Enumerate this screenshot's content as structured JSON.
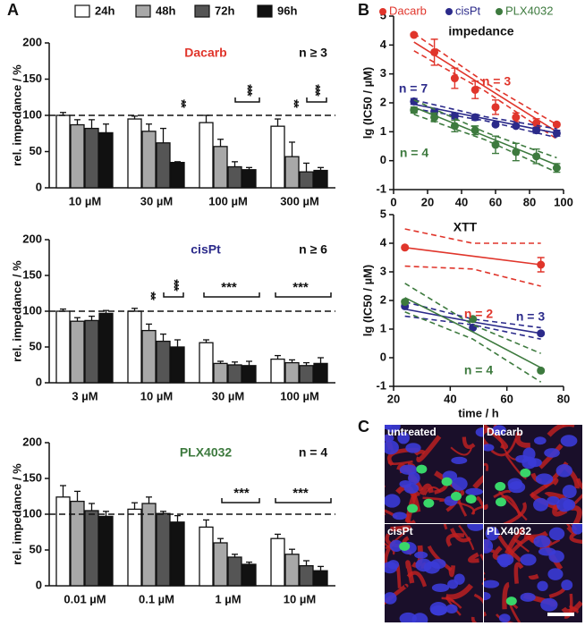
{
  "panels": {
    "labels": [
      "A",
      "B",
      "C"
    ]
  },
  "images": {
    "labels": [
      "untreated",
      "Dacarb",
      "cisPt",
      "PLX4032"
    ]
  },
  "chart_data": [
    {
      "type": "bar",
      "title": "Dacarb",
      "subtitle": "n ≥ 3",
      "title_color": "#e0352b",
      "ylabel": "rel. impedance / %",
      "categories": [
        "10 µM",
        "30 µM",
        "100 µM",
        "300 µM"
      ],
      "ylim": [
        0,
        200
      ],
      "yticks": [
        0,
        50,
        100,
        150,
        200
      ],
      "hline": 100,
      "series": [
        {
          "name": "24h",
          "color": "#ffffff",
          "values": [
            100,
            95,
            90,
            85
          ],
          "errors": [
            4,
            4,
            10,
            10
          ]
        },
        {
          "name": "48h",
          "color": "#a8a8a8",
          "values": [
            87,
            78,
            57,
            43
          ],
          "errors": [
            7,
            10,
            10,
            20
          ]
        },
        {
          "name": "72h",
          "color": "#555555",
          "values": [
            82,
            62,
            29,
            22
          ],
          "errors": [
            12,
            20,
            7,
            12
          ]
        },
        {
          "name": "96h",
          "color": "#111111",
          "values": [
            76,
            35,
            25,
            24
          ],
          "errors": [
            12,
            1,
            3,
            4
          ]
        }
      ],
      "annotations": [
        "**",
        "***",
        "**",
        "***"
      ]
    },
    {
      "type": "bar",
      "title": "cisPt",
      "subtitle": "n ≥ 6",
      "title_color": "#2b2a8a",
      "ylabel": "rel. impedance / %",
      "categories": [
        "3 µM",
        "10 µM",
        "30 µM",
        "100 µM"
      ],
      "ylim": [
        0,
        200
      ],
      "yticks": [
        0,
        50,
        100,
        150,
        200
      ],
      "hline": 100,
      "series": [
        {
          "color": "#ffffff",
          "values": [
            100,
            100,
            56,
            33
          ],
          "errors": [
            3,
            4,
            4,
            5
          ]
        },
        {
          "color": "#a8a8a8",
          "values": [
            86,
            73,
            27,
            28
          ],
          "errors": [
            5,
            9,
            3,
            4
          ]
        },
        {
          "color": "#555555",
          "values": [
            87,
            58,
            25,
            24
          ],
          "errors": [
            6,
            10,
            4,
            4
          ]
        },
        {
          "color": "#111111",
          "values": [
            97,
            50,
            24,
            27
          ],
          "errors": [
            4,
            10,
            6,
            8
          ]
        }
      ],
      "annotations": [
        "**",
        "***",
        "***",
        "***"
      ]
    },
    {
      "type": "bar",
      "title": "PLX4032",
      "subtitle": "n = 4",
      "title_color": "#3d7a3e",
      "ylabel": "rel. impedance / %",
      "categories": [
        "0.01 µM",
        "0.1 µM",
        "1 µM",
        "10 µM"
      ],
      "ylim": [
        0,
        200
      ],
      "yticks": [
        0,
        50,
        100,
        150,
        200
      ],
      "hline": 100,
      "series": [
        {
          "color": "#ffffff",
          "values": [
            124,
            107,
            82,
            66
          ],
          "errors": [
            16,
            9,
            10,
            6
          ]
        },
        {
          "color": "#a8a8a8",
          "values": [
            118,
            115,
            60,
            44
          ],
          "errors": [
            14,
            9,
            6,
            7
          ]
        },
        {
          "color": "#555555",
          "values": [
            105,
            101,
            40,
            28
          ],
          "errors": [
            10,
            3,
            4,
            7
          ]
        },
        {
          "color": "#111111",
          "values": [
            97,
            89,
            30,
            21
          ],
          "errors": [
            7,
            9,
            3,
            6
          ]
        }
      ],
      "annotations": [
        "***",
        "***"
      ]
    },
    {
      "type": "scatter",
      "title": "impedance",
      "ylabel": "lg (IC50 / µM)",
      "xlim": [
        0,
        100
      ],
      "xticks": [
        0,
        20,
        40,
        60,
        80,
        100
      ],
      "ylim": [
        -1,
        5
      ],
      "yticks": [
        -1,
        0,
        1,
        2,
        3,
        4,
        5
      ],
      "series": [
        {
          "name": "Dacarb",
          "color": "#e0352b",
          "x": [
            12,
            24,
            36,
            48,
            60,
            72,
            84,
            96
          ],
          "values": [
            4.35,
            3.75,
            2.85,
            2.45,
            1.85,
            1.5,
            1.3,
            1.25
          ],
          "errors": [
            0.05,
            0.45,
            0.35,
            0.3,
            0.25,
            0.15,
            0.15,
            0.05
          ],
          "fit": {
            "x": [
              12,
              54,
              96
            ],
            "values": [
              4.1,
              2.55,
              1.0
            ],
            "lower": [
              3.8,
              2.4,
              0.75
            ],
            "upper": [
              4.4,
              2.7,
              1.25
            ]
          }
        },
        {
          "name": "cisPt",
          "color": "#2b2a8a",
          "x": [
            12,
            24,
            36,
            48,
            60,
            72,
            84,
            96
          ],
          "values": [
            2.05,
            1.7,
            1.55,
            1.5,
            1.25,
            1.2,
            1.05,
            0.95
          ],
          "errors": [
            0.1,
            0.1,
            0.1,
            0.1,
            0.05,
            0.05,
            0.1,
            0.1
          ],
          "fit": {
            "x": [
              12,
              54,
              96
            ],
            "values": [
              1.95,
              1.45,
              0.95
            ],
            "lower": [
              1.8,
              1.38,
              0.8
            ],
            "upper": [
              2.1,
              1.52,
              1.1
            ]
          }
        },
        {
          "name": "PLX4032",
          "color": "#3d7a3e",
          "x": [
            12,
            24,
            36,
            48,
            60,
            72,
            84,
            96
          ],
          "values": [
            1.75,
            1.5,
            1.2,
            1.05,
            0.55,
            0.3,
            0.15,
            -0.25
          ],
          "errors": [
            0.1,
            0.15,
            0.2,
            0.15,
            0.3,
            0.3,
            0.25,
            0.15
          ],
          "fit": {
            "x": [
              12,
              54,
              96
            ],
            "values": [
              1.85,
              0.85,
              -0.15
            ],
            "lower": [
              1.6,
              0.72,
              -0.4
            ],
            "upper": [
              2.1,
              0.98,
              0.1
            ]
          }
        }
      ],
      "annotations": [
        {
          "text": "n = 3",
          "color": "#e0352b"
        },
        {
          "text": "n = 7",
          "color": "#2b2a8a"
        },
        {
          "text": "n = 4",
          "color": "#3d7a3e"
        }
      ]
    },
    {
      "type": "scatter",
      "title": "XTT",
      "ylabel": "lg (IC50 / µM)",
      "xlabel": "time / h",
      "xlim": [
        20,
        80
      ],
      "xticks": [
        20,
        40,
        60,
        80
      ],
      "ylim": [
        -1,
        5
      ],
      "yticks": [
        -1,
        0,
        1,
        2,
        3,
        4,
        5
      ],
      "series": [
        {
          "color": "#e0352b",
          "x": [
            24,
            72
          ],
          "values": [
            3.85,
            3.25
          ],
          "errors": [
            0.05,
            0.25
          ],
          "fit": {
            "x": [
              24,
              48,
              72
            ],
            "values": [
              3.85,
              3.55,
              3.25
            ],
            "lower": [
              3.2,
              3.1,
              2.5
            ],
            "upper": [
              4.5,
              4.0,
              4.0
            ]
          }
        },
        {
          "color": "#2b2a8a",
          "x": [
            24,
            48,
            72
          ],
          "values": [
            1.8,
            1.05,
            0.85
          ],
          "errors": [
            0.05,
            0.05,
            0.05
          ],
          "fit": {
            "x": [
              24,
              48,
              72
            ],
            "values": [
              1.7,
              1.25,
              0.85
            ],
            "lower": [
              1.45,
              1.15,
              0.65
            ],
            "upper": [
              1.95,
              1.35,
              1.05
            ]
          }
        },
        {
          "color": "#3d7a3e",
          "x": [
            24,
            48,
            72
          ],
          "values": [
            1.95,
            1.35,
            -0.45
          ],
          "errors": [
            0.05,
            0.05,
            0.05
          ],
          "fit": {
            "x": [
              24,
              48,
              72
            ],
            "values": [
              2.1,
              0.9,
              -0.35
            ],
            "lower": [
              1.6,
              0.65,
              -0.85
            ],
            "upper": [
              2.6,
              1.15,
              0.15
            ]
          }
        }
      ],
      "annotations": [
        {
          "text": "n = 2",
          "color": "#e0352b"
        },
        {
          "text": "n = 3",
          "color": "#2b2a8a"
        },
        {
          "text": "n = 4",
          "color": "#3d7a3e"
        }
      ]
    }
  ]
}
